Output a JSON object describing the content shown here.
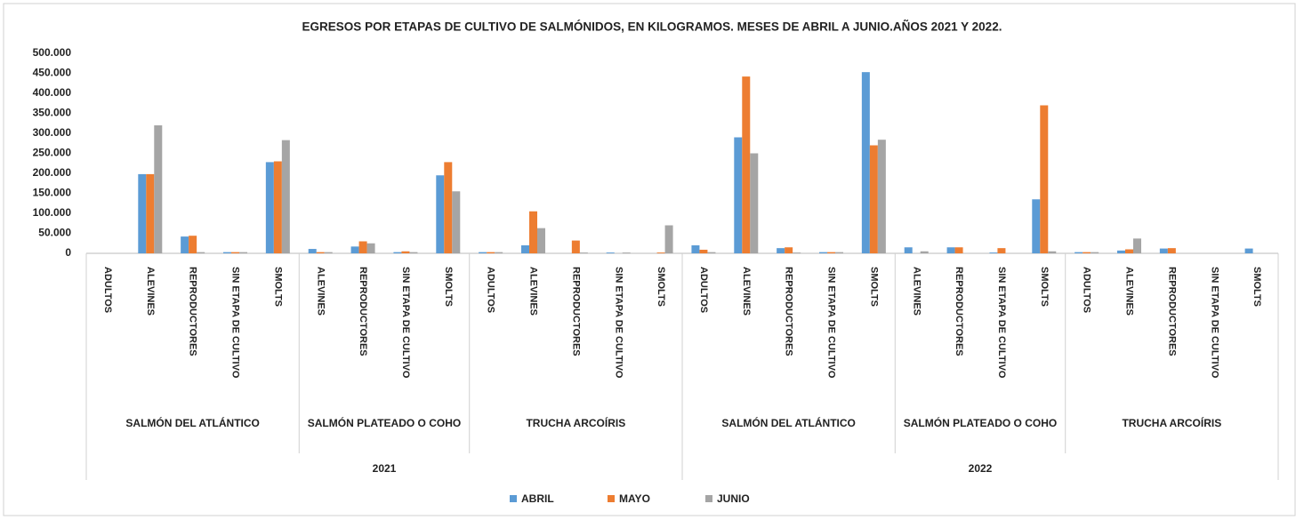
{
  "chart_data": {
    "type": "bar",
    "title": "EGRESOS POR ETAPAS DE CULTIVO DE SALMÓNIDOS, EN KILOGRAMOS. MESES DE ABRIL A JUNIO.AÑOS 2021 Y 2022.",
    "years": [
      {
        "label": "2021",
        "groups": [
          {
            "label": "SALMÓN DEL ATLÁNTICO",
            "categories": [
              "ADULTOS",
              "ALEVINES",
              "REPRODUCTORES",
              "SIN ETAPA DE CULTIVO",
              "SMOLTS"
            ]
          },
          {
            "label": "SALMÓN PLATEADO O COHO",
            "categories": [
              "ALEVINES",
              "REPRODUCTORES",
              "SIN ETAPA DE CULTIVO",
              "SMOLTS"
            ]
          },
          {
            "label": "TRUCHA ARCOÍRIS",
            "categories": [
              "ADULTOS",
              "ALEVINES",
              "REPRODUCTORES",
              "SIN ETAPA DE CULTIVO",
              "SMOLTS"
            ]
          }
        ]
      },
      {
        "label": "2022",
        "groups": [
          {
            "label": "SALMÓN DEL ATLÁNTICO",
            "categories": [
              "ADULTOS",
              "ALEVINES",
              "REPRODUCTORES",
              "SIN ETAPA DE CULTIVO",
              "SMOLTS"
            ]
          },
          {
            "label": "SALMÓN PLATEADO O COHO",
            "categories": [
              "ALEVINES",
              "REPRODUCTORES",
              "SIN ETAPA DE CULTIVO",
              "SMOLTS"
            ]
          },
          {
            "label": "TRUCHA ARCOÍRIS",
            "categories": [
              "ADULTOS",
              "ALEVINES",
              "REPRODUCTORES",
              "SIN ETAPA DE CULTIVO",
              "SMOLTS"
            ]
          }
        ]
      }
    ],
    "series": [
      {
        "name": "ABRIL",
        "color": "#5b9bd5",
        "values": [
          0,
          198000,
          42000,
          3000,
          228000,
          11000,
          17000,
          3000,
          195000,
          3000,
          20000,
          0,
          2000,
          0,
          20000,
          290000,
          13000,
          3000,
          453000,
          15000,
          15000,
          2000,
          135000,
          3000,
          7000,
          12000,
          0,
          12000
        ]
      },
      {
        "name": "MAYO",
        "color": "#ed7d31",
        "values": [
          0,
          198000,
          44000,
          3000,
          230000,
          3000,
          30000,
          5000,
          228000,
          3000,
          105000,
          32000,
          0,
          2000,
          9000,
          442000,
          15000,
          3000,
          270000,
          0,
          15000,
          13000,
          370000,
          3000,
          10000,
          13000,
          0,
          0
        ]
      },
      {
        "name": "JUNIO",
        "color": "#a5a5a5",
        "values": [
          0,
          320000,
          3000,
          3000,
          283000,
          3000,
          25000,
          3000,
          155000,
          3000,
          63000,
          2000,
          2000,
          70000,
          3000,
          250000,
          2000,
          3000,
          284000,
          5000,
          0,
          0,
          5000,
          3000,
          37000,
          0,
          0,
          0
        ]
      }
    ],
    "ylim": [
      0,
      500000
    ],
    "yticks": [
      0,
      {
        "value": 50000,
        "label": "50.000"
      },
      {
        "value": 100000,
        "label": "100.000"
      },
      {
        "value": 150000,
        "label": "150.000"
      },
      {
        "value": 200000,
        "label": "200.000"
      },
      {
        "value": 250000,
        "label": "250.000"
      },
      {
        "value": 300000,
        "label": "300.000"
      },
      {
        "value": 350000,
        "label": "350.000"
      },
      {
        "value": 400000,
        "label": "400.000"
      },
      {
        "value": 450000,
        "label": "450.000"
      },
      {
        "value": {
          "value": 500000
        },
        "label": "500.000"
      }
    ],
    "grid": false,
    "legend": "bottom"
  }
}
